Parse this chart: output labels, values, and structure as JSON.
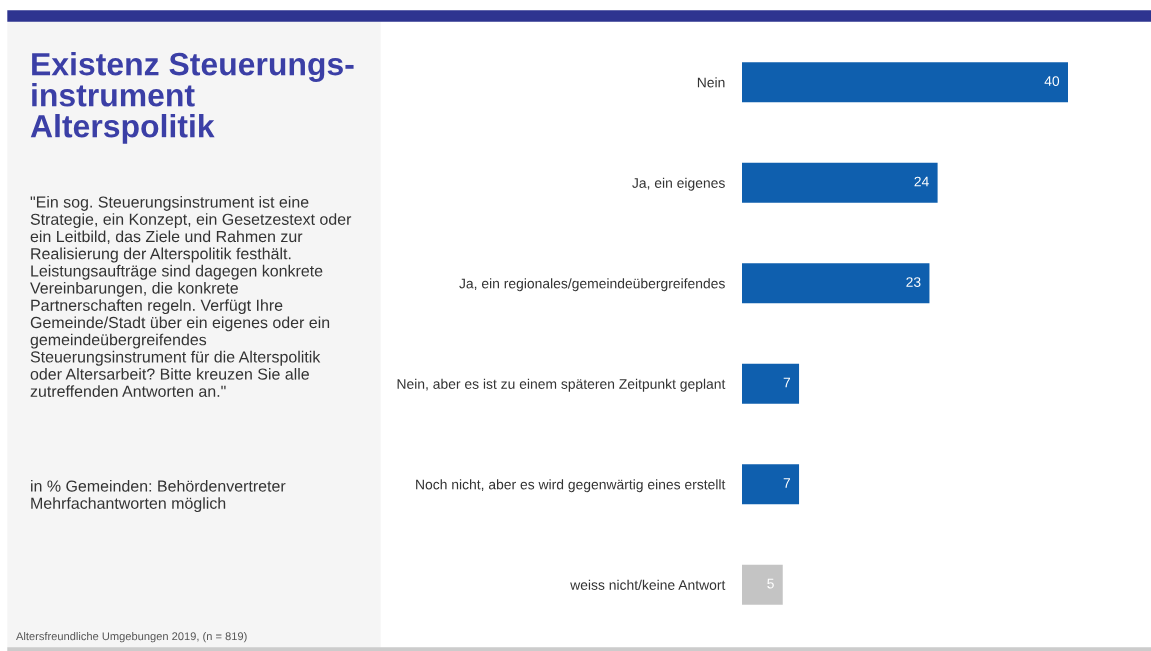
{
  "chart_data": {
    "type": "bar",
    "orientation": "horizontal",
    "title": "Existenz Steuerungs-\ninstrument\nAlterspolitik",
    "subtitle": "\"Ein sog. Steuerungsinstrument ist eine\nStrategie, ein Konzept, ein Gesetzestext oder\nein Leitbild, das Ziele und Rahmen zur\nRealisierung der Alterspolitik festhält.\nLeistungsaufträge sind dagegen konkrete\nVereinbarungen, die konkrete\nPartnerschaften regeln. Verfügt Ihre\nGemeinde/Stadt über ein eigenes oder ein\ngemeindeübergreifendes\nSteuerungsinstrument für die Alterspolitik\noder Altersarbeit? Bitte kreuzen Sie alle\nzutreffenden Antworten an.\"",
    "annotations": [
      "in % Gemeinden: Behördenvertreter\nMehrfachantworten möglich",
      "Altersfreundliche Umgebungen 2019, (n = 819)"
    ],
    "categories": [
      "Nein",
      "Ja, ein eigenes",
      "Ja, ein regionales/gemeindeübergreifendes",
      "Nein, aber es ist zu einem späteren Zeitpunkt geplant",
      "Noch nicht, aber es wird gegenwärtig eines erstellt",
      "weiss nicht/keine Antwort"
    ],
    "values": [
      40,
      24,
      23,
      7,
      7,
      5
    ],
    "colors": [
      "#0f5fae",
      "#0f5fae",
      "#0f5fae",
      "#0f5fae",
      "#0f5fae",
      "#c4c4c4"
    ],
    "data_labels": true
  }
}
